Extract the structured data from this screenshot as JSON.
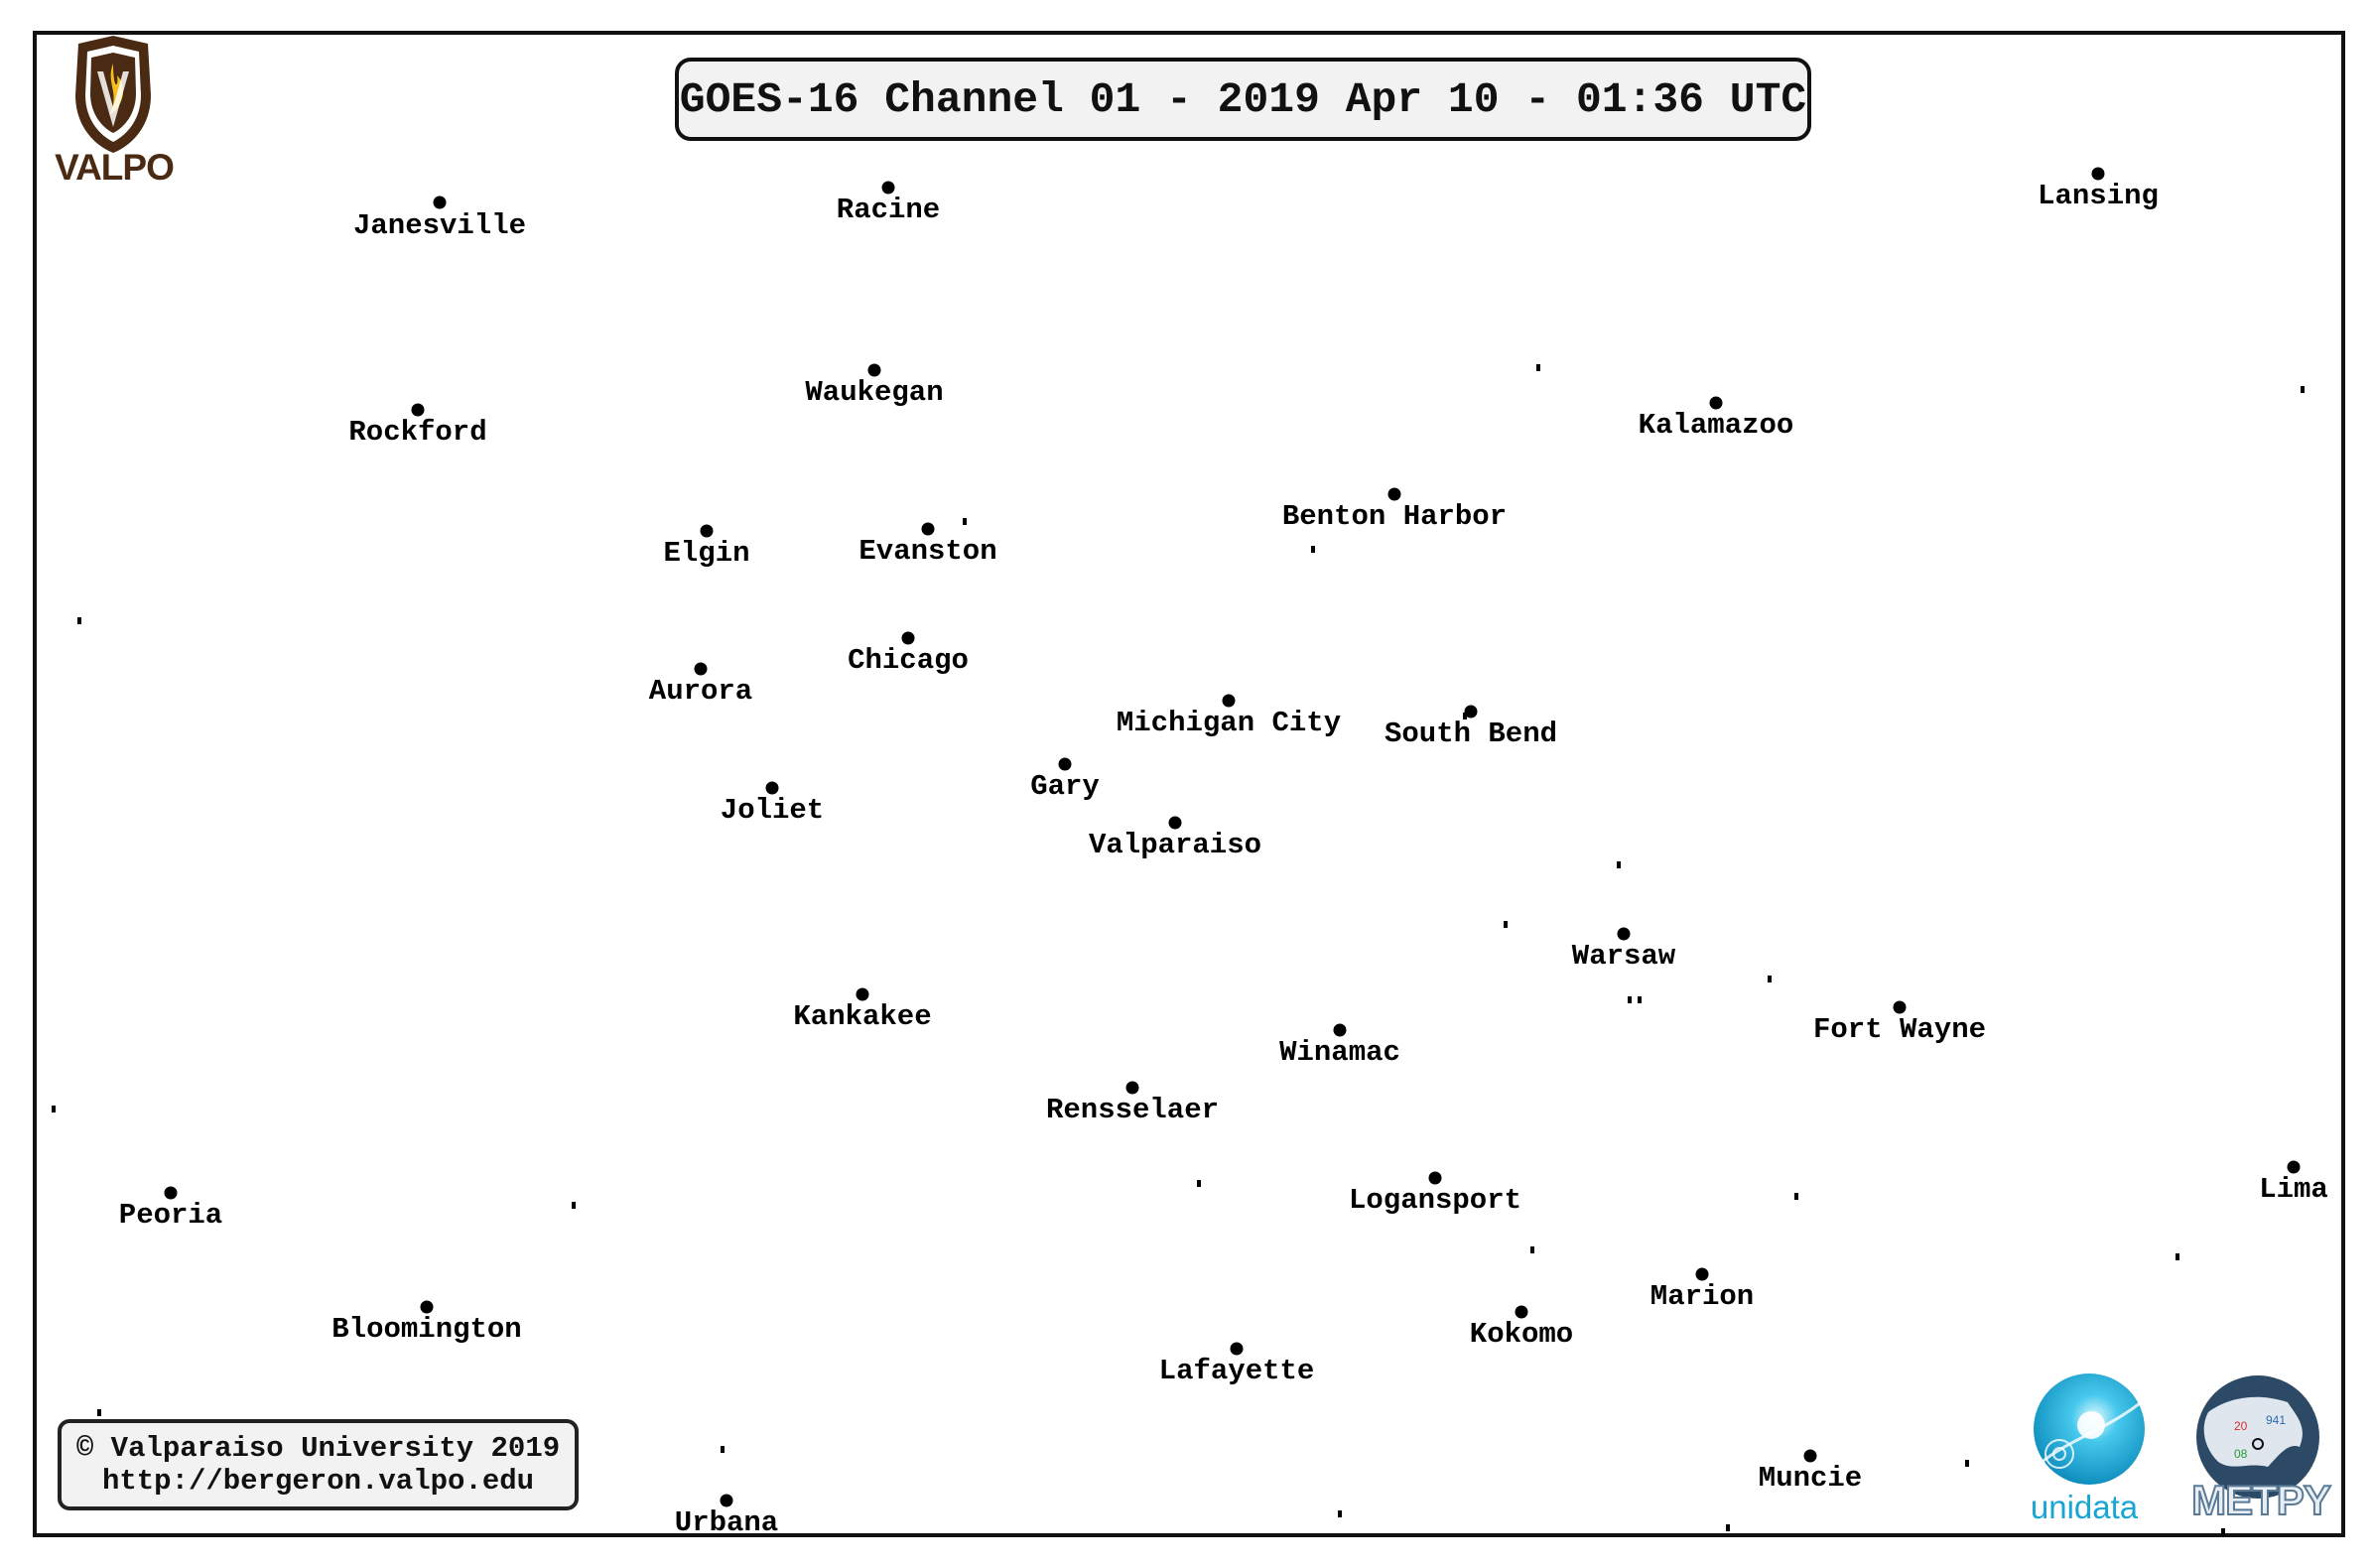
{
  "title": "GOES-16 Channel 01 - 2019 Apr 10 - 01:36 UTC",
  "copyright": {
    "line1": "© Valparaiso University 2019",
    "line2": "http://bergeron.valpo.edu"
  },
  "logos": {
    "valpo": "VALPO",
    "unidata": "unidata",
    "metpy": "METPY"
  },
  "cities": [
    {
      "name": "Janesville"
    },
    {
      "name": "Racine"
    },
    {
      "name": "Lansing"
    },
    {
      "name": "Waukegan"
    },
    {
      "name": "Rockford"
    },
    {
      "name": "Kalamazoo"
    },
    {
      "name": "Benton Harbor"
    },
    {
      "name": "Elgin"
    },
    {
      "name": "Evanston"
    },
    {
      "name": "Chicago"
    },
    {
      "name": "Aurora"
    },
    {
      "name": "Michigan City"
    },
    {
      "name": "South Bend"
    },
    {
      "name": "Gary"
    },
    {
      "name": "Joliet"
    },
    {
      "name": "Valparaiso"
    },
    {
      "name": "Warsaw"
    },
    {
      "name": "Kankakee"
    },
    {
      "name": "Fort Wayne"
    },
    {
      "name": "Winamac"
    },
    {
      "name": "Rensselaer"
    },
    {
      "name": "Lima"
    },
    {
      "name": "Peoria"
    },
    {
      "name": "Logansport"
    },
    {
      "name": "Marion"
    },
    {
      "name": "Bloomington"
    },
    {
      "name": "Kokomo"
    },
    {
      "name": "Lafayette"
    },
    {
      "name": "Muncie"
    },
    {
      "name": "Urbana"
    }
  ]
}
